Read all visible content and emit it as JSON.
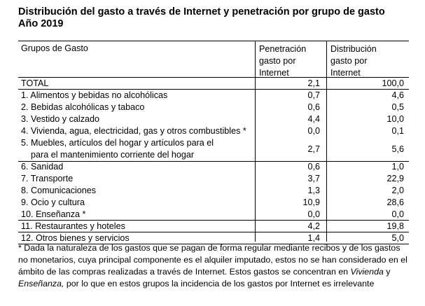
{
  "title": {
    "line1": "Distribución del gasto a través de Internet y penetración por grupo de gasto",
    "line2": "Año 2019"
  },
  "table": {
    "headers": {
      "group": "Grupos de Gasto",
      "penetration": [
        "Penetración",
        "gasto por",
        "Internet"
      ],
      "distribution": [
        "Distribución",
        "gasto por",
        "Internet"
      ]
    },
    "rows": [
      {
        "name": "TOTAL",
        "pen": "2,1",
        "dist": "100,0"
      },
      {
        "name": "1. Alimentos y bebidas no alcohólicas",
        "pen": "0,7",
        "dist": "4,6"
      },
      {
        "name": "2. Bebidas alcohólicas y tabaco",
        "pen": "0,6",
        "dist": "0,5"
      },
      {
        "name": "3. Vestido y calzado",
        "pen": "4,4",
        "dist": "10,0"
      },
      {
        "name": "4. Vivienda, agua, electricidad, gas y otros combustibles *",
        "pen": "0,0",
        "dist": "0,1"
      },
      {
        "name": "5. Muebles, artículos del hogar y artículos para el",
        "name2": "para el mantenimiento corriente del hogar",
        "pen": "2,7",
        "dist": "5,6"
      },
      {
        "name": "6. Sanidad",
        "pen": "0,6",
        "dist": "1,0"
      },
      {
        "name": "7. Transporte",
        "pen": "3,7",
        "dist": "22,9"
      },
      {
        "name": "8. Comunicaciones",
        "pen": "1,3",
        "dist": "2,0"
      },
      {
        "name": "9. Ocio y cultura",
        "pen": "10,9",
        "dist": "28,6"
      },
      {
        "name": "10. Enseñanza *",
        "pen": "0,0",
        "dist": "0,0"
      },
      {
        "name": "11. Restaurantes y hoteles",
        "pen": "4,2",
        "dist": "19,8"
      },
      {
        "name": "12. Otros bienes y servicios",
        "pen": "1,4",
        "dist": "5,0"
      }
    ]
  },
  "footnote": {
    "part1": "* Dada la naturaleza de los gastos que se pagan de forma regular mediante recibos y de los gastos no monetarios, cuya principal componente es el alquiler imputado, estos no se han considerado en el ámbito de las compras realizadas a través de Internet. Estos gastos se concentran en ",
    "em1": "Vivienda",
    "part2": " y ",
    "em2": "Enseñanza,",
    "part3": " por lo que en estos grupos la incidencia de los gastos por Internet es irrelevante"
  }
}
